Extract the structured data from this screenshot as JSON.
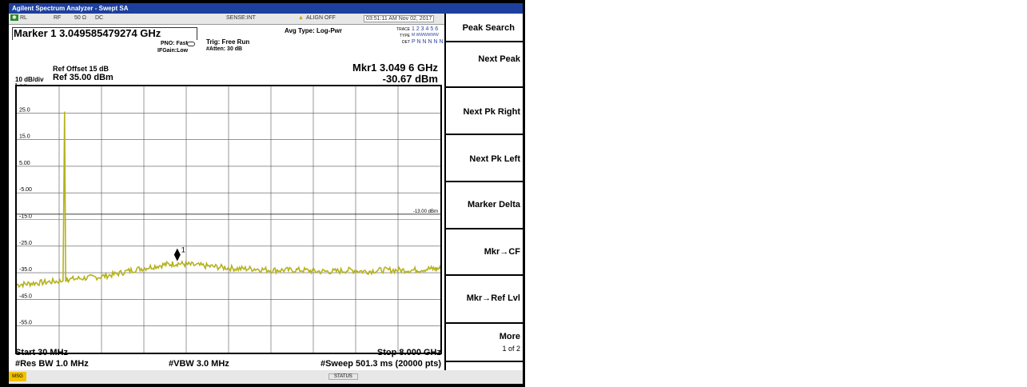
{
  "window_title": "Agilent Spectrum Analyzer - Swept SA",
  "status_row": {
    "mode": "RL",
    "rf": "RF",
    "impedance": "50 Ω",
    "coupling": "DC",
    "sense": "SENSE:INT",
    "align": "ALIGN OFF",
    "datetime": "03:51:11 AM Nov 02, 2017"
  },
  "marker_title": "Marker 1 3.049585479274 GHz",
  "pno": "PNO: Fast",
  "ifgain": "IFGain:Low",
  "trig": "Trig: Free Run",
  "atten": "#Atten: 30 dB",
  "avg_type": "Avg Type: Log-Pwr",
  "trace_info": {
    "trace_label": "TRACE",
    "trace_value": "1 2 3 4 5 6",
    "type_label": "TYPE",
    "type_value": "M WWWWWW",
    "det_label": "DET",
    "det_value": "P N N N N N"
  },
  "ref_offset": "Ref Offset 15 dB",
  "scale": "10 dB/div",
  "scale_type": "Log",
  "ref_level": "Ref 35.00 dBm",
  "marker_readout": {
    "freq": "Mkr1 3.049 6 GHz",
    "level": "-30.67 dBm",
    "marker_label": "1"
  },
  "display_line_label": "-13.00 dBm",
  "start": "Start 30 MHz",
  "stop": "Stop 8.000 GHz",
  "res_bw": "#Res BW 1.0 MHz",
  "vbw": "#VBW 3.0 MHz",
  "sweep": "#Sweep  501.3 ms (20000 pts)",
  "msg": "MSG",
  "status": "STATUS",
  "softkeys": {
    "title": "Peak Search",
    "items": [
      {
        "label": "Next Peak"
      },
      {
        "label": "Next Pk Right"
      },
      {
        "label": "Next Pk Left"
      },
      {
        "label": "Marker Delta"
      },
      {
        "label": "Mkr→CF"
      },
      {
        "label": "Mkr→Ref Lvl"
      },
      {
        "label": "More",
        "sub": "1 of 2"
      }
    ]
  },
  "colors": {
    "trace": "#b5b21c",
    "titlebar": "#1d3f9e",
    "msg": "#f2c200"
  },
  "chart_data": {
    "type": "line",
    "y_tick_labels": [
      "25.0",
      "15.0",
      "5.00",
      "-5.00",
      "-15.0",
      "-25.0",
      "-35.0",
      "-45.0",
      "-55.0"
    ],
    "ylim": [
      -65,
      35
    ],
    "xlim": [
      0.03,
      8.0
    ],
    "display_line": -13.0,
    "marker": {
      "x": 3.0496,
      "y": -30.67
    },
    "series": [
      {
        "x": [
          0.03,
          0.3,
          0.6,
          0.9,
          0.93,
          0.95,
          1.0,
          1.3,
          1.6,
          1.9,
          2.2,
          2.5,
          2.8,
          3.05,
          3.3,
          3.6,
          3.9,
          4.2,
          4.5,
          4.8,
          5.1,
          5.4,
          5.7,
          6.0,
          6.3,
          6.6,
          6.9,
          7.2,
          7.5,
          7.8,
          8.0
        ],
        "y": [
          -39.5,
          -39.0,
          -38.5,
          -38.0,
          25.5,
          -37.5,
          -37.5,
          -37.0,
          -36.5,
          -35.5,
          -34.0,
          -33.0,
          -32.0,
          -31.5,
          -32.0,
          -32.5,
          -33.0,
          -33.5,
          -33.5,
          -34.0,
          -34.0,
          -34.0,
          -34.5,
          -34.5,
          -34.0,
          -34.5,
          -34.0,
          -34.0,
          -34.0,
          -33.5,
          -33.5
        ]
      }
    ]
  }
}
